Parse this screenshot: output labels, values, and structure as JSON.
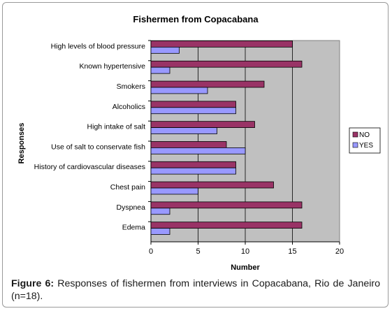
{
  "chart_data": {
    "type": "bar",
    "orientation": "horizontal",
    "title": "Fishermen from Copacabana",
    "xlabel": "Number",
    "ylabel": "Responses",
    "xlim": [
      0,
      20
    ],
    "xticks": [
      0,
      5,
      10,
      15,
      20
    ],
    "categories": [
      "High levels of blood pressure",
      "Known hypertensive",
      "Smokers",
      "Alcoholics",
      "High intake of salt",
      "Use of salt to conservate fish",
      "History of cardiovascular diseases",
      "Chest pain",
      "Dyspnea",
      "Edema"
    ],
    "series": [
      {
        "name": "NO",
        "color": "#993366",
        "values": [
          15,
          16,
          12,
          9,
          11,
          8,
          9,
          13,
          16,
          16
        ]
      },
      {
        "name": "YES",
        "color": "#9999ff",
        "values": [
          3,
          2,
          6,
          9,
          7,
          10,
          9,
          5,
          2,
          2
        ]
      }
    ],
    "grid": true,
    "legend_position": "right",
    "plot_background": "#c0c0c0"
  },
  "caption": {
    "label": "Figure 6:",
    "text": " Responses of  fishermen from  interviews in Copacabana, Rio de Janeiro (n=18)."
  }
}
